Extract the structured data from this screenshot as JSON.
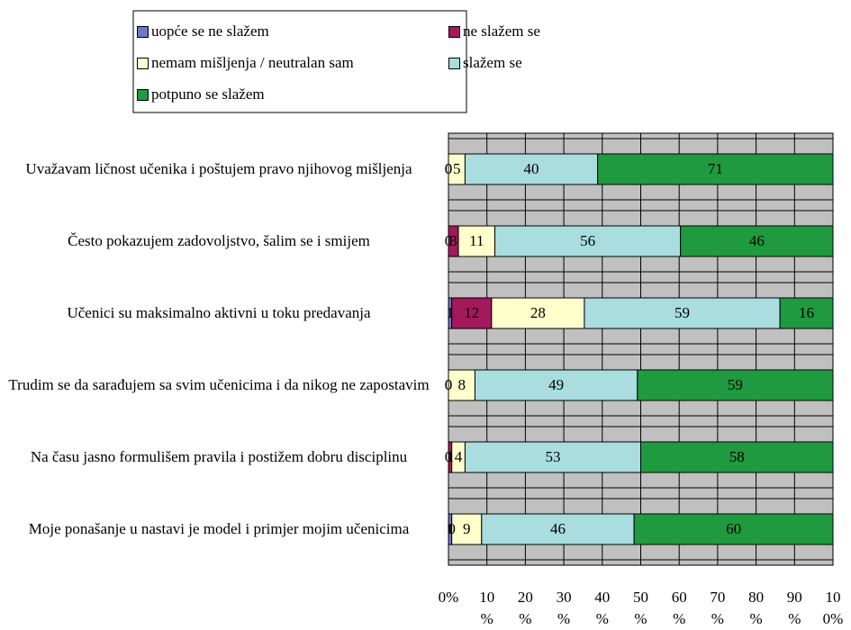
{
  "chart_data": {
    "type": "stacked_barh_percent",
    "categories": [
      "Uvažavam ličnost učenika i poštujem pravo njihovog mišljenja",
      "Često pokazujem zadovoljstvo, šalim se i smijem",
      "Učenici su maksimalno aktivni u toku predavanja",
      "Trudim se da sarađujem sa svim učenicima i da nikog ne zapostavim",
      "Na času jasno formulišem pravila i postižem dobru disciplinu",
      "Moje ponašanje u nastavi je model i primjer mojim učenicima"
    ],
    "series": [
      {
        "name": "uopće se ne slažem",
        "color": "#6a78c8",
        "values": [
          0,
          0,
          1,
          0,
          0,
          1
        ]
      },
      {
        "name": "ne slažem se",
        "color": "#a3195b",
        "values": [
          0,
          3,
          12,
          0,
          1,
          0
        ]
      },
      {
        "name": "nemam mišljenja / neutralan sam",
        "color": "#ffffcc",
        "values": [
          5,
          11,
          28,
          8,
          4,
          9
        ]
      },
      {
        "name": "slažem se",
        "color": "#a9dde0",
        "values": [
          40,
          56,
          59,
          49,
          53,
          46
        ]
      },
      {
        "name": "potpuno se slažem",
        "color": "#1f9a3f",
        "values": [
          71,
          46,
          16,
          59,
          58,
          60
        ]
      }
    ],
    "xlim": [
      0,
      100
    ],
    "xticks": [
      {
        "value": 0,
        "label": "0%"
      },
      {
        "value": 10,
        "label": "10 %"
      },
      {
        "value": 20,
        "label": "20 %"
      },
      {
        "value": 30,
        "label": "30 %"
      },
      {
        "value": 40,
        "label": "40 %"
      },
      {
        "value": 50,
        "label": "50 %"
      },
      {
        "value": 60,
        "label": "60 %"
      },
      {
        "value": 70,
        "label": "70 %"
      },
      {
        "value": 80,
        "label": "80 %"
      },
      {
        "value": 90,
        "label": "90 %"
      },
      {
        "value": 100,
        "label": "10 0%"
      }
    ],
    "grid": true
  }
}
